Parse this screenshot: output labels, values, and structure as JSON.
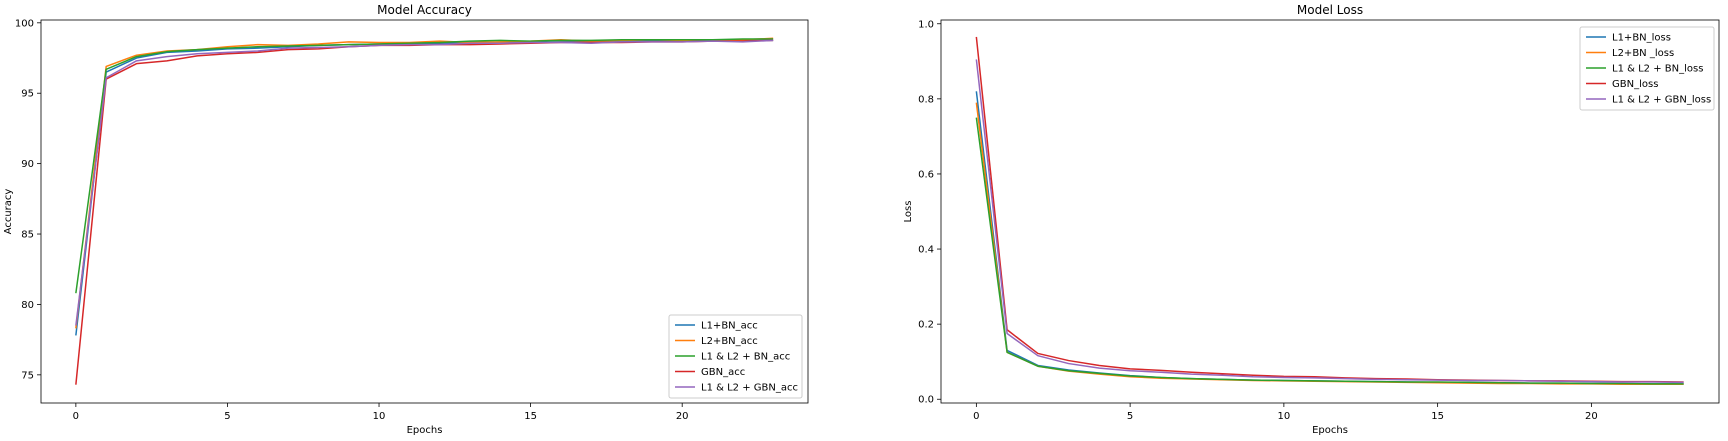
{
  "chart_data": [
    {
      "type": "line",
      "title": "Model Accuracy",
      "xlabel": "Epochs",
      "ylabel": "Accuracy",
      "xlim": [
        -1.15,
        24.15
      ],
      "ylim": [
        73.0,
        100.2
      ],
      "xticks": [
        0,
        5,
        10,
        15,
        20
      ],
      "yticks": [
        75,
        80,
        85,
        90,
        95,
        100
      ],
      "legend": "lower-right",
      "x": [
        0,
        1,
        2,
        3,
        4,
        5,
        6,
        7,
        8,
        9,
        10,
        11,
        12,
        13,
        14,
        15,
        16,
        17,
        18,
        19,
        20,
        21,
        22,
        23
      ],
      "series": [
        {
          "name": "L1+BN_acc",
          "color": "#1f77b4",
          "values": [
            77.8,
            96.5,
            97.5,
            97.9,
            98.0,
            98.15,
            98.2,
            98.3,
            98.4,
            98.45,
            98.5,
            98.5,
            98.55,
            98.6,
            98.6,
            98.6,
            98.65,
            98.65,
            98.7,
            98.7,
            98.7,
            98.75,
            98.75,
            98.75
          ]
        },
        {
          "name": "L2+BN_acc",
          "color": "#ff7f0e",
          "values": [
            78.3,
            96.9,
            97.7,
            98.0,
            98.1,
            98.3,
            98.45,
            98.4,
            98.5,
            98.65,
            98.6,
            98.6,
            98.7,
            98.6,
            98.65,
            98.7,
            98.8,
            98.7,
            98.75,
            98.8,
            98.75,
            98.8,
            98.8,
            98.9
          ]
        },
        {
          "name": "L1 & L2 + BN_acc",
          "color": "#2ca02c",
          "values": [
            80.8,
            96.7,
            97.6,
            97.95,
            98.1,
            98.2,
            98.3,
            98.35,
            98.4,
            98.45,
            98.5,
            98.55,
            98.6,
            98.7,
            98.75,
            98.7,
            98.75,
            98.75,
            98.8,
            98.8,
            98.8,
            98.8,
            98.85,
            98.85
          ]
        },
        {
          "name": "GBN_acc",
          "color": "#d62728",
          "values": [
            74.3,
            96.0,
            97.1,
            97.3,
            97.65,
            97.8,
            97.9,
            98.1,
            98.15,
            98.3,
            98.4,
            98.4,
            98.45,
            98.45,
            98.5,
            98.55,
            98.6,
            98.6,
            98.6,
            98.65,
            98.65,
            98.7,
            98.7,
            98.75
          ]
        },
        {
          "name": "L1 & L2 + GBN_acc",
          "color": "#9467bd",
          "values": [
            78.5,
            96.1,
            97.3,
            97.6,
            97.8,
            97.9,
            98.0,
            98.2,
            98.25,
            98.3,
            98.4,
            98.45,
            98.45,
            98.55,
            98.55,
            98.6,
            98.6,
            98.55,
            98.65,
            98.65,
            98.65,
            98.7,
            98.65,
            98.75
          ]
        }
      ]
    },
    {
      "type": "line",
      "title": "Model Loss",
      "xlabel": "Epochs",
      "ylabel": "Loss",
      "xlim": [
        -1.15,
        24.15
      ],
      "ylim": [
        -0.01,
        1.01
      ],
      "xticks": [
        0,
        5,
        10,
        15,
        20
      ],
      "yticks": [
        0.0,
        0.2,
        0.4,
        0.6,
        0.8,
        1.0
      ],
      "yticklabels": [
        "0.0",
        "0.2",
        "0.4",
        "0.6",
        "0.8",
        "1.0"
      ],
      "legend": "upper-right",
      "x": [
        0,
        1,
        2,
        3,
        4,
        5,
        6,
        7,
        8,
        9,
        10,
        11,
        12,
        13,
        14,
        15,
        16,
        17,
        18,
        19,
        20,
        21,
        22,
        23
      ],
      "series": [
        {
          "name": "L1+BN_loss",
          "color": "#1f77b4",
          "values": [
            0.82,
            0.13,
            0.09,
            0.078,
            0.07,
            0.063,
            0.058,
            0.055,
            0.053,
            0.051,
            0.05,
            0.049,
            0.048,
            0.047,
            0.046,
            0.045,
            0.045,
            0.044,
            0.043,
            0.043,
            0.042,
            0.042,
            0.041,
            0.041
          ]
        },
        {
          "name": "L2+BN _loss",
          "color": "#ff7f0e",
          "values": [
            0.79,
            0.125,
            0.088,
            0.075,
            0.067,
            0.06,
            0.056,
            0.054,
            0.052,
            0.05,
            0.049,
            0.048,
            0.047,
            0.046,
            0.045,
            0.044,
            0.043,
            0.042,
            0.042,
            0.041,
            0.041,
            0.04,
            0.04,
            0.04
          ]
        },
        {
          "name": "L1 & L2 + BN_loss",
          "color": "#2ca02c",
          "values": [
            0.75,
            0.125,
            0.088,
            0.076,
            0.069,
            0.062,
            0.058,
            0.055,
            0.053,
            0.051,
            0.05,
            0.049,
            0.048,
            0.047,
            0.046,
            0.046,
            0.045,
            0.044,
            0.043,
            0.043,
            0.042,
            0.042,
            0.041,
            0.041
          ]
        },
        {
          "name": "GBN_loss",
          "color": "#d62728",
          "values": [
            0.965,
            0.185,
            0.122,
            0.103,
            0.09,
            0.081,
            0.077,
            0.072,
            0.068,
            0.064,
            0.061,
            0.06,
            0.057,
            0.055,
            0.054,
            0.052,
            0.051,
            0.05,
            0.049,
            0.049,
            0.048,
            0.047,
            0.047,
            0.046
          ]
        },
        {
          "name": "L1 & L2 + GBN_loss",
          "color": "#9467bd",
          "values": [
            0.905,
            0.175,
            0.116,
            0.095,
            0.083,
            0.076,
            0.072,
            0.067,
            0.064,
            0.06,
            0.058,
            0.057,
            0.055,
            0.053,
            0.052,
            0.051,
            0.05,
            0.05,
            0.049,
            0.048,
            0.047,
            0.046,
            0.046,
            0.045
          ]
        }
      ]
    }
  ]
}
